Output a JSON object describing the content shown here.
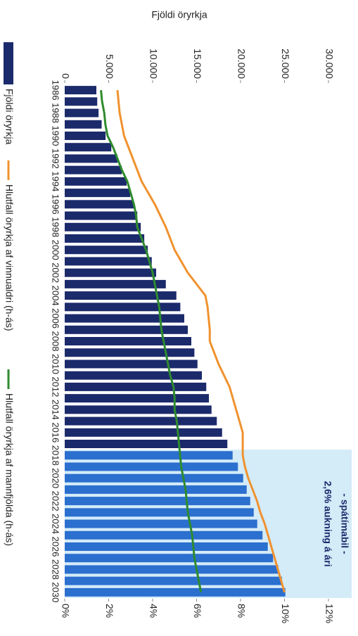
{
  "chart_data": {
    "type": "bar",
    "y_label": "Fjöldi öryrkja",
    "categories": [
      "1986",
      null,
      "1988",
      null,
      "1990",
      null,
      "1992",
      null,
      "1994",
      null,
      "1996",
      null,
      "1998",
      null,
      "2000",
      null,
      "2002",
      null,
      "2004",
      null,
      "2006",
      null,
      "2008",
      null,
      "2010",
      null,
      "2012",
      null,
      "2014",
      null,
      "2016",
      null,
      "2018",
      null,
      "2020",
      null,
      "2022",
      null,
      "2024",
      null,
      "2026",
      null,
      "2028",
      null,
      "2030"
    ],
    "series": [
      {
        "name": "Fjöldi öryrkja",
        "color": "#1b2a6b",
        "type": "bar",
        "values": [
          3600,
          3700,
          3850,
          4200,
          4650,
          5300,
          6000,
          6500,
          7050,
          7450,
          7850,
          8250,
          8650,
          9050,
          9450,
          9900,
          10400,
          11500,
          12700,
          13150,
          13600,
          14000,
          14400,
          14750,
          15100,
          15600,
          16100,
          16400,
          16700,
          17300,
          17900,
          18500,
          19100,
          19700,
          20300,
          20700,
          21100,
          21500,
          21900,
          22500,
          23100,
          23700,
          24300,
          24700,
          25100
        ]
      },
      {
        "name": "Hlutfall öryrkja af vinnualdri (h-ás)",
        "color": "#f0922e",
        "type": "line",
        "axis": "y2",
        "values": [
          2.4,
          2.45,
          2.5,
          2.6,
          2.7,
          2.9,
          3.1,
          3.3,
          3.5,
          3.8,
          4.1,
          4.35,
          4.6,
          4.8,
          5.0,
          5.3,
          5.6,
          6.0,
          6.4,
          6.5,
          6.55,
          6.6,
          6.6,
          6.8,
          7.0,
          7.25,
          7.5,
          7.65,
          7.8,
          7.95,
          8.1,
          8.1,
          8.1,
          8.2,
          8.35,
          8.55,
          8.75,
          8.9,
          9.1,
          9.25,
          9.4,
          9.55,
          9.7,
          9.85,
          10.0
        ]
      },
      {
        "name": "Hlutfall öryrkja af mannfjölda (h-ás)",
        "color": "#2e8b2e",
        "type": "line",
        "axis": "y2",
        "values": [
          1.65,
          1.7,
          1.8,
          1.85,
          1.95,
          2.2,
          2.4,
          2.6,
          2.85,
          3.0,
          3.15,
          3.25,
          3.3,
          3.5,
          3.7,
          3.85,
          4.0,
          4.1,
          4.2,
          4.3,
          4.35,
          4.4,
          4.5,
          4.6,
          4.7,
          4.8,
          4.95,
          5.0,
          5.0,
          5.1,
          5.15,
          5.2,
          5.25,
          5.3,
          5.4,
          5.5,
          5.55,
          5.6,
          5.7,
          5.8,
          5.85,
          5.9,
          6.0,
          6.1,
          6.2
        ]
      }
    ],
    "ylim": [
      0,
      30000
    ],
    "yticks": [
      0,
      {
        "value": 5000,
        "label": "5.000"
      },
      {
        "value": 10000,
        "label": "10.000"
      },
      {
        "value": 15000,
        "label": "15.000"
      },
      {
        "value": 20000,
        "label": "20.000"
      },
      {
        "value": 25000,
        "label": "25.000"
      },
      {
        "value": 30000,
        "label": "30.000"
      }
    ],
    "y2lim": [
      0,
      12
    ],
    "y2ticks": [
      {
        "value": 0,
        "label": "0%"
      },
      {
        "value": 2,
        "label": "2%"
      },
      {
        "value": 4,
        "label": "4%"
      },
      {
        "value": 6,
        "label": "6%"
      },
      {
        "value": 8,
        "label": "8%"
      },
      {
        "value": 10,
        "label": "10%"
      },
      {
        "value": 12,
        "label": "12%"
      }
    ],
    "projection": {
      "text": [
        "- spátímabil -",
        "2,6% aukning á ári"
      ],
      "start": 2018,
      "color": "#d4ebf8",
      "bar_color": "#2b6fcf"
    },
    "legend": "bottom"
  }
}
